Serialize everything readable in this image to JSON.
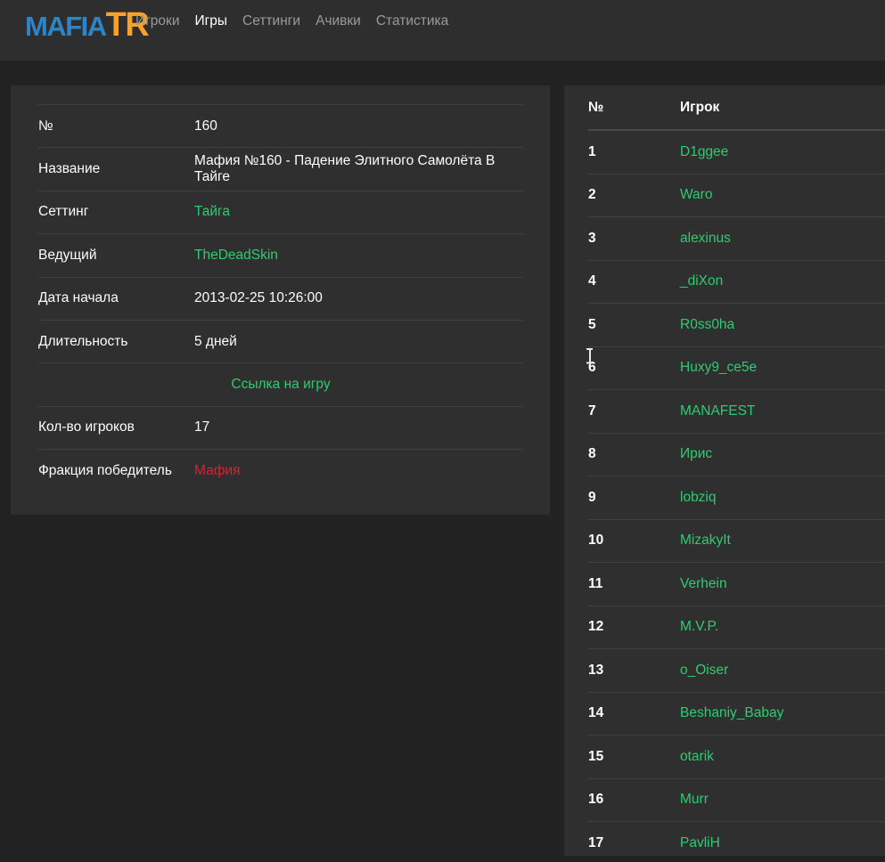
{
  "nav": {
    "logo": {
      "part1": "MAFIA",
      "part2": "TR"
    },
    "items": [
      {
        "label": "Игроки",
        "active": false
      },
      {
        "label": "Игры",
        "active": true
      },
      {
        "label": "Сеттинги",
        "active": false
      },
      {
        "label": "Ачивки",
        "active": false
      },
      {
        "label": "Статистика",
        "active": false
      }
    ]
  },
  "game_details": {
    "rows": [
      {
        "label": "№",
        "value": "160",
        "type": "text",
        "interactable": "false"
      },
      {
        "label": "Название",
        "value": "Мафия №160 - Падение Элитного Самолёта В Тайге",
        "type": "text",
        "interactable": "false"
      },
      {
        "label": "Сеттинг",
        "value": "Тайга",
        "type": "link",
        "interactable": "true"
      },
      {
        "label": "Ведущий",
        "value": "TheDeadSkin",
        "type": "link",
        "interactable": "true"
      },
      {
        "label": "Дата начала",
        "value": "2013-02-25 10:26:00",
        "type": "text",
        "interactable": "false"
      },
      {
        "label": "Длительность",
        "value": "5 дней",
        "type": "text",
        "interactable": "false"
      },
      {
        "label": "",
        "value": "Ссылка на игру",
        "type": "center-link",
        "interactable": "true"
      },
      {
        "label": "Кол-во игроков",
        "value": "17",
        "type": "text",
        "interactable": "false"
      },
      {
        "label": "Фракция победитель",
        "value": "Мафия",
        "type": "mafia",
        "interactable": "false"
      }
    ]
  },
  "players_table": {
    "headers": [
      "№",
      "Игрок"
    ],
    "rows": [
      {
        "num": "1",
        "name": "D1ggee"
      },
      {
        "num": "2",
        "name": "Waro"
      },
      {
        "num": "3",
        "name": "alexinus"
      },
      {
        "num": "4",
        "name": "_diXon"
      },
      {
        "num": "5",
        "name": "R0ss0ha"
      },
      {
        "num": "6",
        "name": "Huxy9_ce5e"
      },
      {
        "num": "7",
        "name": "MANAFEST"
      },
      {
        "num": "8",
        "name": "Ирис"
      },
      {
        "num": "9",
        "name": "lobziq"
      },
      {
        "num": "10",
        "name": "MizakyIt"
      },
      {
        "num": "11",
        "name": "Verhein"
      },
      {
        "num": "12",
        "name": "M.V.P."
      },
      {
        "num": "13",
        "name": "o_Oiser"
      },
      {
        "num": "14",
        "name": "Beshaniy_Babay"
      },
      {
        "num": "15",
        "name": "otarik"
      },
      {
        "num": "16",
        "name": "Murr"
      },
      {
        "num": "17",
        "name": "PavliH"
      }
    ]
  },
  "colors": {
    "page_bg": "#222222",
    "panel_bg": "#2f2f30",
    "navbar_bg": "#2e2e2f",
    "link_green": "#2ecc71",
    "winner_red": "#dc2130",
    "logo_blue": "#2d85c5",
    "logo_orange": "#f9a227"
  }
}
